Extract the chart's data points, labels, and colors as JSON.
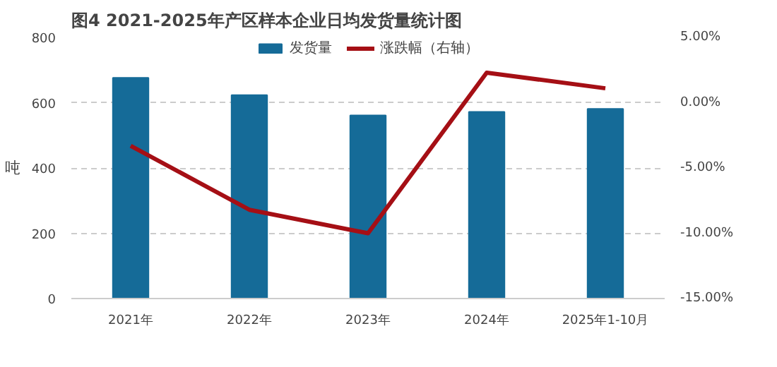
{
  "chart_data": {
    "type": "bar",
    "title": "图4 2021-2025年产区样本企业日均发货量统计图",
    "ylabel": "吨",
    "categories": [
      "2021年",
      "2022年",
      "2023年",
      "2024年",
      "2025年1-10月"
    ],
    "series": [
      {
        "name": "发货量",
        "color": "#156b98",
        "values": [
          676,
          623,
          561,
          572,
          581
        ]
      },
      {
        "name": "涨跌幅（右轴）",
        "type": "line",
        "axis": "y2",
        "color": "#a50f15",
        "values": [
          -3.3,
          -8.2,
          -10.0,
          2.3,
          1.1
        ]
      }
    ],
    "ylim": [
      0,
      800
    ],
    "yticks": [
      0,
      200,
      400,
      600,
      800
    ],
    "y2lim": [
      -15,
      5
    ],
    "y2ticks": [
      {
        "value": 5,
        "label": "5.00%"
      },
      {
        "value": 0,
        "label": "0.00%"
      },
      {
        "value": -5,
        "label": "-5.00%"
      },
      {
        "value": -10,
        "label": "-10.00%"
      },
      {
        "value": -15,
        "label": "-15.00%"
      }
    ],
    "grid": "y",
    "legend": "top"
  }
}
